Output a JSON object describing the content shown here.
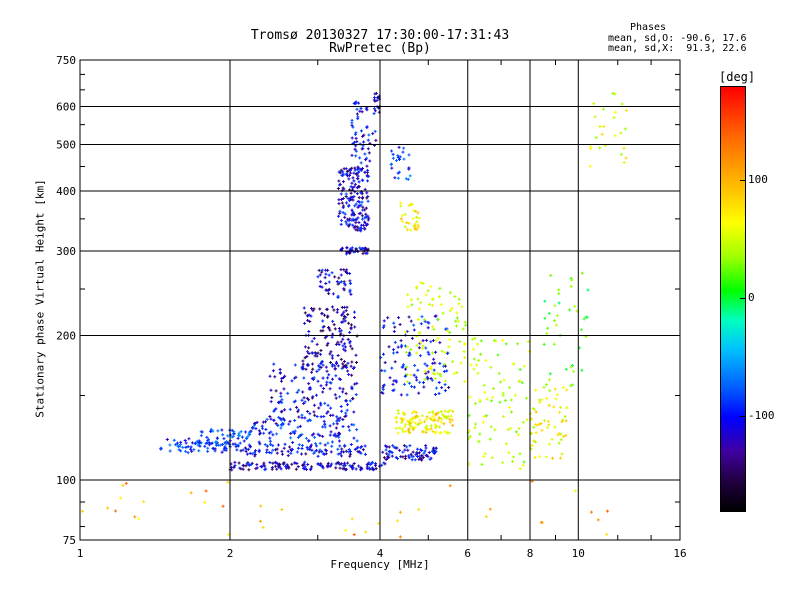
{
  "header": {
    "title_line1": "Tromsø 20130327 17:30:00-17:31:43",
    "title_line2": "RwPretec (Bp)"
  },
  "phases_box": {
    "heading": "Phases",
    "line_o": "mean, sd,O: -90.6, 17.6",
    "line_x": "mean, sd,X:  91.3, 22.6"
  },
  "colorbar": {
    "unit_label": "[deg]",
    "ticks": [
      {
        "value": 100,
        "label": "100"
      },
      {
        "value": 0,
        "label": "0"
      },
      {
        "value": -100,
        "label": "-100"
      }
    ],
    "range": [
      -180,
      180
    ]
  },
  "chart_data": {
    "type": "scatter",
    "title": "Tromsø 20130327 17:30:00-17:31:43",
    "subtitle": "RwPretec (Bp)",
    "xlabel": "Frequency [MHz]",
    "ylabel": "Stationary phase Virtual Height [km]",
    "xscale": "log",
    "yscale": "log",
    "xlim": [
      1,
      16
    ],
    "ylim": [
      75,
      750
    ],
    "xticks": [
      1,
      2,
      4,
      6,
      8,
      10,
      16
    ],
    "xtick_labels": [
      "1",
      "2",
      "4",
      "6",
      "8",
      "10",
      "16"
    ],
    "yticks": [
      75,
      100,
      200,
      300,
      400,
      500,
      600,
      750
    ],
    "ytick_labels": [
      "75",
      "100",
      "200",
      "300",
      "400",
      "500",
      "600",
      "750"
    ],
    "grid": true,
    "color_scale": "phase (deg)",
    "clusters": [
      {
        "f": [
          1.45,
          2.1
        ],
        "h": [
          114,
          122
        ],
        "phase": -95,
        "n": 70
      },
      {
        "f": [
          1.7,
          2.2
        ],
        "h": [
          118,
          128
        ],
        "phase": -80,
        "n": 60
      },
      {
        "f": [
          2.0,
          4.1
        ],
        "h": [
          105,
          109
        ],
        "phase": -120,
        "n": 140
      },
      {
        "f": [
          2.1,
          3.8
        ],
        "h": [
          112,
          118
        ],
        "phase": -110,
        "n": 90
      },
      {
        "f": [
          2.2,
          3.6
        ],
        "h": [
          118,
          135
        ],
        "phase": -100,
        "n": 120
      },
      {
        "f": [
          2.4,
          3.6
        ],
        "h": [
          135,
          175
        ],
        "phase": -110,
        "n": 150
      },
      {
        "f": [
          2.8,
          3.6
        ],
        "h": [
          170,
          230
        ],
        "phase": -130,
        "n": 140
      },
      {
        "f": [
          3.0,
          3.5
        ],
        "h": [
          240,
          275
        ],
        "phase": -120,
        "n": 50
      },
      {
        "f": [
          3.3,
          3.8
        ],
        "h": [
          295,
          305
        ],
        "phase": -120,
        "n": 40
      },
      {
        "f": [
          3.3,
          3.8
        ],
        "h": [
          330,
          450
        ],
        "phase": -115,
        "n": 180
      },
      {
        "f": [
          3.5,
          3.95
        ],
        "h": [
          450,
          620
        ],
        "phase": -110,
        "n": 60
      },
      {
        "f": [
          3.9,
          4.0
        ],
        "h": [
          580,
          650
        ],
        "phase": -120,
        "n": 15
      },
      {
        "f": [
          4.0,
          5.2
        ],
        "h": [
          110,
          118
        ],
        "phase": -115,
        "n": 80
      },
      {
        "f": [
          4.0,
          5.5
        ],
        "h": [
          150,
          220
        ],
        "phase": -105,
        "n": 120
      },
      {
        "f": [
          4.3,
          5.6
        ],
        "h": [
          125,
          140
        ],
        "phase": 95,
        "n": 120
      },
      {
        "f": [
          4.5,
          6.0
        ],
        "h": [
          160,
          260
        ],
        "phase": 70,
        "n": 90
      },
      {
        "f": [
          4.4,
          4.8
        ],
        "h": [
          330,
          380
        ],
        "phase": 95,
        "n": 30
      },
      {
        "f": [
          4.2,
          4.6
        ],
        "h": [
          420,
          500
        ],
        "phase": -90,
        "n": 25
      },
      {
        "f": [
          6.0,
          8.0
        ],
        "h": [
          105,
          200
        ],
        "phase": 60,
        "n": 90
      },
      {
        "f": [
          8.0,
          9.5
        ],
        "h": [
          110,
          160
        ],
        "phase": 90,
        "n": 60
      },
      {
        "f": [
          8.5,
          10.5
        ],
        "h": [
          150,
          280
        ],
        "phase": 30,
        "n": 40
      },
      {
        "f": [
          10.5,
          12.5
        ],
        "h": [
          450,
          640
        ],
        "phase": 80,
        "n": 25
      },
      {
        "f": [
          1.0,
          12.0
        ],
        "h": [
          76,
          100
        ],
        "phase": 120,
        "n": 40
      }
    ]
  }
}
